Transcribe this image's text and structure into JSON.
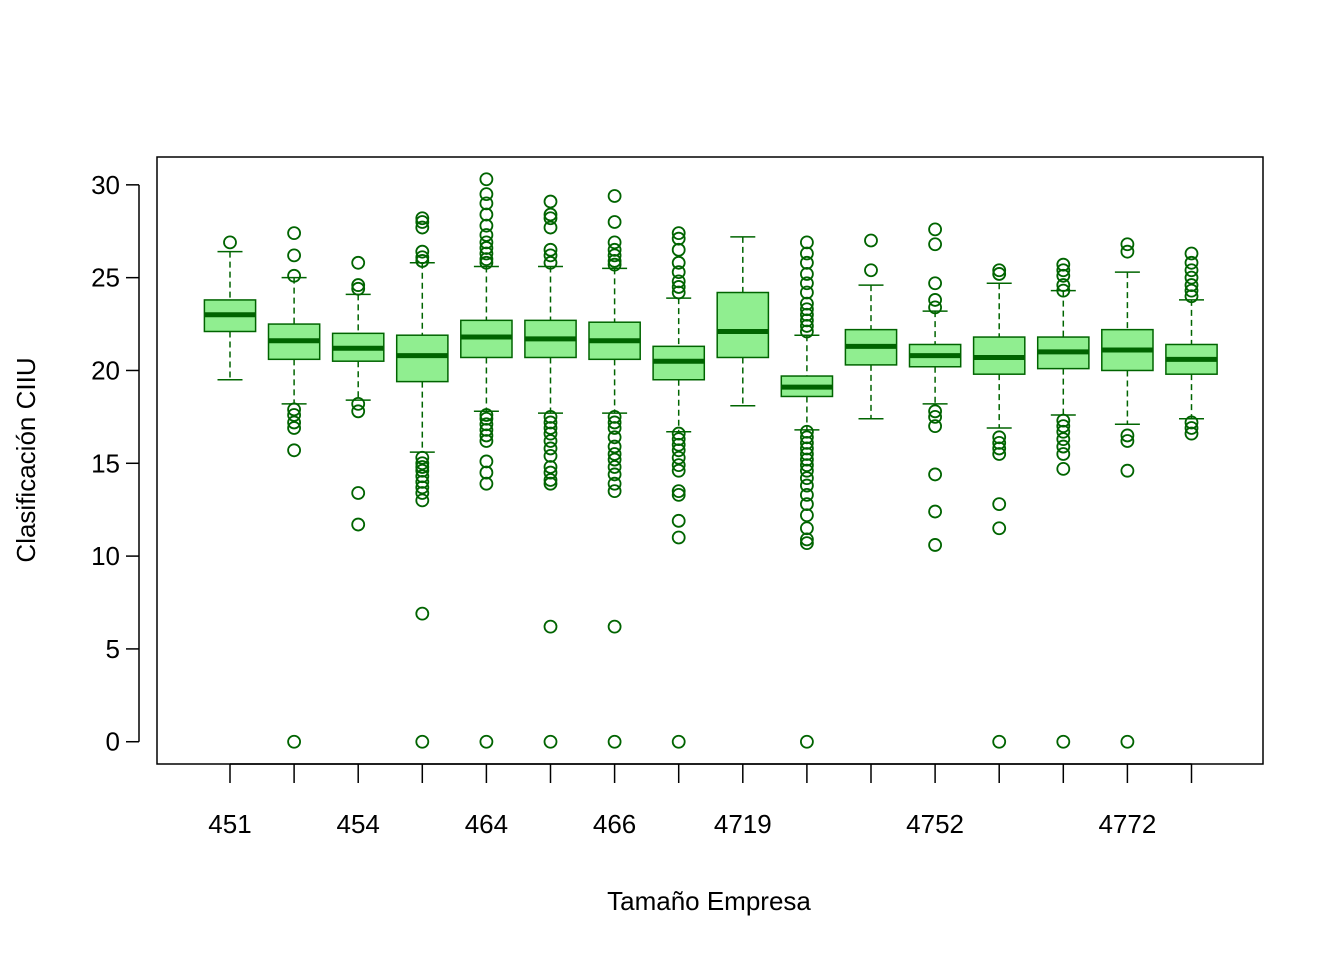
{
  "chart_data": {
    "type": "boxplot",
    "title": "",
    "xlabel": "Tamaño Empresa",
    "ylabel": "Clasificación CIIU",
    "ylim": [
      -1.2,
      31.5
    ],
    "yticks": [
      0,
      5,
      10,
      15,
      20,
      25,
      30
    ],
    "grid": false,
    "legend": "none",
    "colors": {
      "box_fill": "#90ee90",
      "box_stroke": "#006400",
      "axis": "#000000"
    },
    "categories": [
      {
        "label": "451",
        "shown": true,
        "q1": 22.1,
        "median": 23.0,
        "q3": 23.8,
        "whisker_low": 19.5,
        "whisker_high": 26.4,
        "outliers": [
          26.9
        ]
      },
      {
        "label": "",
        "shown": false,
        "q1": 20.6,
        "median": 21.6,
        "q3": 22.5,
        "whisker_low": 18.2,
        "whisker_high": 25.0,
        "outliers": [
          27.4,
          26.2,
          25.1,
          17.9,
          17.6,
          17.2,
          16.9,
          15.7,
          0
        ]
      },
      {
        "label": "454",
        "shown": true,
        "q1": 20.5,
        "median": 21.2,
        "q3": 22.0,
        "whisker_low": 18.4,
        "whisker_high": 24.1,
        "outliers": [
          25.8,
          24.6,
          24.4,
          18.2,
          17.8,
          13.4,
          11.7
        ]
      },
      {
        "label": "",
        "shown": false,
        "q1": 19.4,
        "median": 20.8,
        "q3": 21.9,
        "whisker_low": 15.6,
        "whisker_high": 25.8,
        "outliers": [
          28.2,
          28.0,
          27.7,
          26.4,
          26.1,
          25.9,
          15.3,
          15.0,
          14.8,
          14.6,
          14.3,
          14.0,
          13.7,
          13.4,
          13.0,
          6.9,
          0
        ]
      },
      {
        "label": "464",
        "shown": true,
        "q1": 20.7,
        "median": 21.8,
        "q3": 22.7,
        "whisker_low": 17.8,
        "whisker_high": 25.6,
        "outliers": [
          30.3,
          29.5,
          29.0,
          28.4,
          27.8,
          27.3,
          26.9,
          26.6,
          26.3,
          26.0,
          25.8,
          17.6,
          17.4,
          17.1,
          16.8,
          16.5,
          16.2,
          15.1,
          14.5,
          13.9,
          0
        ]
      },
      {
        "label": "",
        "shown": false,
        "q1": 20.7,
        "median": 21.7,
        "q3": 22.7,
        "whisker_low": 17.7,
        "whisker_high": 25.6,
        "outliers": [
          29.1,
          28.4,
          28.2,
          27.7,
          26.5,
          26.2,
          25.8,
          17.5,
          17.2,
          16.9,
          16.6,
          16.2,
          15.8,
          15.4,
          14.8,
          14.5,
          14.1,
          13.9,
          6.2,
          0
        ]
      },
      {
        "label": "466",
        "shown": true,
        "q1": 20.6,
        "median": 21.6,
        "q3": 22.6,
        "whisker_low": 17.7,
        "whisker_high": 25.5,
        "outliers": [
          29.4,
          28.0,
          26.9,
          26.5,
          26.2,
          25.9,
          25.7,
          17.5,
          17.2,
          16.9,
          16.4,
          15.9,
          15.5,
          15.2,
          14.8,
          14.4,
          13.9,
          13.5,
          6.2,
          0
        ]
      },
      {
        "label": "",
        "shown": false,
        "q1": 19.5,
        "median": 20.5,
        "q3": 21.3,
        "whisker_low": 16.7,
        "whisker_high": 23.9,
        "outliers": [
          27.4,
          27.1,
          26.5,
          25.8,
          25.3,
          24.8,
          24.5,
          24.2,
          16.6,
          16.3,
          16.0,
          15.7,
          15.3,
          14.9,
          14.6,
          13.5,
          13.3,
          11.9,
          11.0,
          0
        ]
      },
      {
        "label": "4719",
        "shown": true,
        "q1": 20.7,
        "median": 22.1,
        "q3": 24.2,
        "whisker_low": 18.1,
        "whisker_high": 27.2,
        "outliers": []
      },
      {
        "label": "",
        "shown": false,
        "q1": 18.6,
        "median": 19.1,
        "q3": 19.7,
        "whisker_low": 16.8,
        "whisker_high": 21.9,
        "outliers": [
          26.9,
          26.3,
          25.8,
          25.2,
          24.7,
          24.2,
          23.6,
          23.3,
          23.0,
          22.7,
          22.4,
          22.1,
          16.7,
          16.4,
          16.1,
          15.8,
          15.5,
          15.2,
          14.9,
          14.6,
          14.2,
          13.8,
          13.3,
          12.8,
          12.2,
          11.5,
          10.9,
          10.7,
          0
        ]
      },
      {
        "label": "",
        "shown": false,
        "q1": 20.3,
        "median": 21.3,
        "q3": 22.2,
        "whisker_low": 17.4,
        "whisker_high": 24.6,
        "outliers": [
          27.0,
          25.4
        ]
      },
      {
        "label": "4752",
        "shown": true,
        "q1": 20.2,
        "median": 20.8,
        "q3": 21.4,
        "whisker_low": 18.2,
        "whisker_high": 23.2,
        "outliers": [
          27.6,
          26.8,
          24.7,
          23.8,
          23.4,
          17.8,
          17.5,
          17.0,
          14.4,
          12.4,
          10.6
        ]
      },
      {
        "label": "",
        "shown": false,
        "q1": 19.8,
        "median": 20.7,
        "q3": 21.8,
        "whisker_low": 16.9,
        "whisker_high": 24.7,
        "outliers": [
          25.4,
          25.2,
          16.4,
          16.1,
          15.8,
          15.5,
          12.8,
          11.5,
          0
        ]
      },
      {
        "label": "",
        "shown": false,
        "q1": 20.1,
        "median": 21.0,
        "q3": 21.8,
        "whisker_low": 17.6,
        "whisker_high": 24.3,
        "outliers": [
          25.7,
          25.4,
          25.1,
          24.6,
          24.3,
          17.3,
          17.0,
          16.7,
          16.3,
          15.9,
          15.5,
          14.7,
          0
        ]
      },
      {
        "label": "4772",
        "shown": true,
        "q1": 20.0,
        "median": 21.1,
        "q3": 22.2,
        "whisker_low": 17.1,
        "whisker_high": 25.3,
        "outliers": [
          26.8,
          26.4,
          16.5,
          16.2,
          14.6,
          0
        ]
      },
      {
        "label": "",
        "shown": false,
        "q1": 19.8,
        "median": 20.6,
        "q3": 21.4,
        "whisker_low": 17.4,
        "whisker_high": 23.8,
        "outliers": [
          26.3,
          25.8,
          25.4,
          25.0,
          24.6,
          24.3,
          24.0,
          17.2,
          16.9,
          16.6
        ]
      }
    ]
  }
}
